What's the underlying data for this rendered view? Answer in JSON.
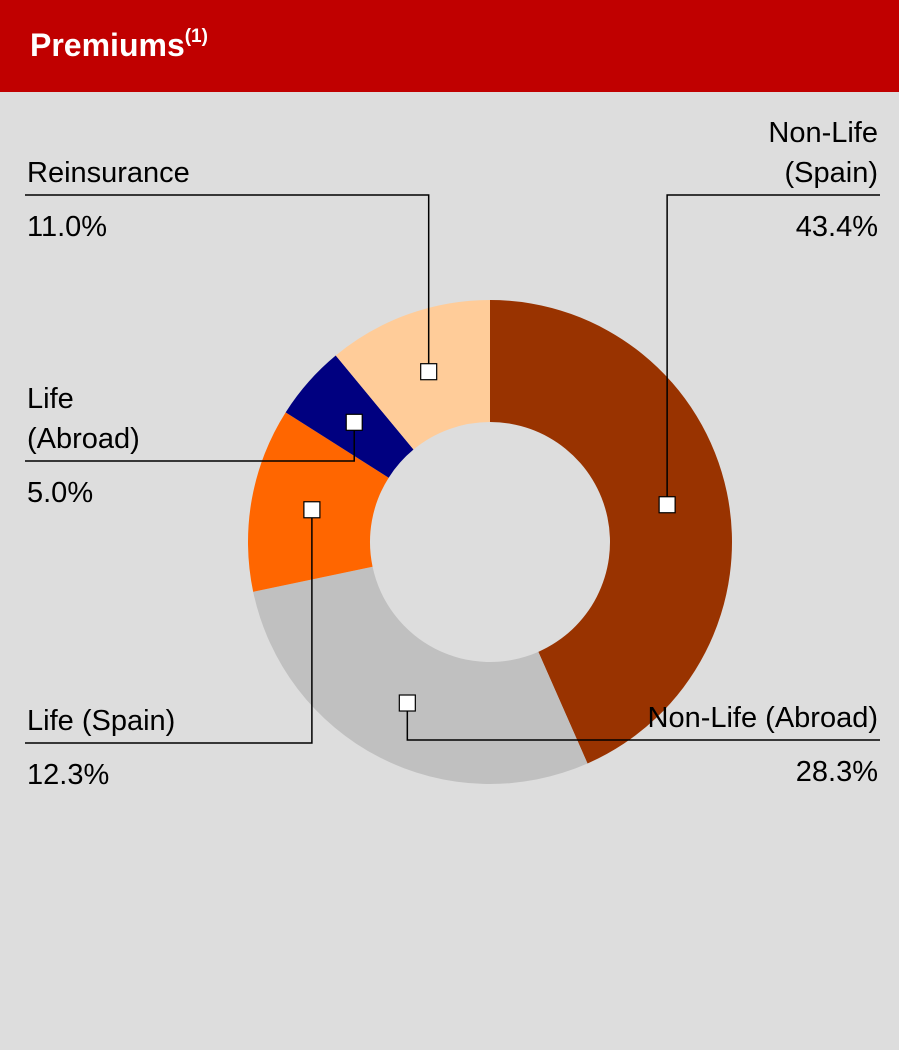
{
  "chart_data": {
    "type": "donut",
    "title": "Premiums",
    "title_note": "(1)",
    "categories": [
      "Non-Life\n(Spain)",
      "Non-Life (Abroad)",
      "Life (Spain)",
      "Life\n(Abroad)",
      "Reinsurance"
    ],
    "values": [
      43.4,
      28.3,
      12.3,
      5.0,
      11.0
    ],
    "value_labels": [
      "43.4%",
      "28.3%",
      "12.3%",
      "5.0%",
      "11.0%"
    ],
    "colors": [
      "#993300",
      "#C0C0C0",
      "#FF6600",
      "#000080",
      "#FFCC99"
    ]
  }
}
